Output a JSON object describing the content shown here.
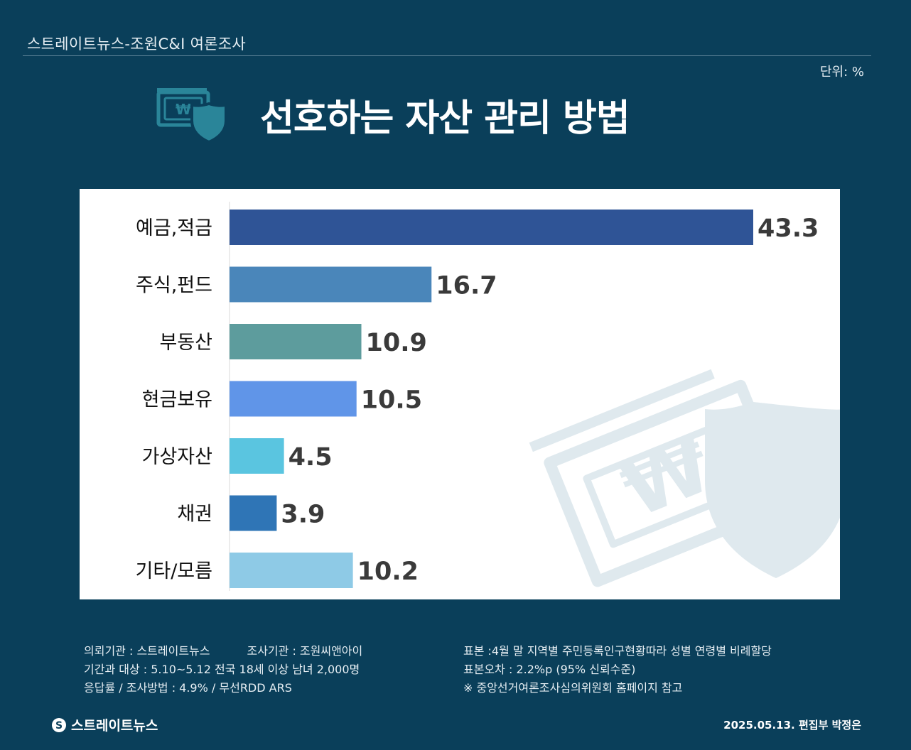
{
  "header": {
    "source_title": "스트레이트뉴스-조원C&I 여론조사",
    "unit_label": "단위: %"
  },
  "icon": "money-shield-icon",
  "chart_data": {
    "type": "bar",
    "orientation": "horizontal",
    "title": "선호하는 자산 관리 방법",
    "unit": "%",
    "xlim": [
      0,
      43.3
    ],
    "categories": [
      "예금,적금",
      "주식,펀드",
      "부동산",
      "현금보유",
      "가상자산",
      "채권",
      "기타/모름"
    ],
    "values": [
      43.3,
      16.7,
      10.9,
      10.5,
      4.5,
      3.9,
      10.2
    ],
    "value_labels": [
      "43.3",
      "16.7",
      "10.9",
      "10.5",
      "4.5",
      "3.9",
      "10.2"
    ],
    "colors": [
      "#2f5496",
      "#4a86ba",
      "#5d9c9d",
      "#6095e8",
      "#5ac5e0",
      "#2f75b6",
      "#8ecae6"
    ]
  },
  "footer": {
    "commissioner": "의뢰기관 : 스트레이트뉴스",
    "agency": "조사기관 : 조원씨앤아이",
    "period_target": "기간과 대상 : 5.10~5.12 전국 18세 이상 남녀 2,000명",
    "response_method": "응답률 / 조사방법 : 4.9% / 무선RDD ARS",
    "sample": "표본 :4월 말 지역별 주민등록인구현황따라 성별 연령별 비례할당",
    "margin_error": "표본오차 : 2.2%p (95% 신뢰수준)",
    "note": "※ 중앙선거여론조사심의위원회 홈페이지 참고"
  },
  "brand": {
    "logo_text": "스트레이트뉴스",
    "credit": "2025.05.13. 편집부 박정은"
  }
}
